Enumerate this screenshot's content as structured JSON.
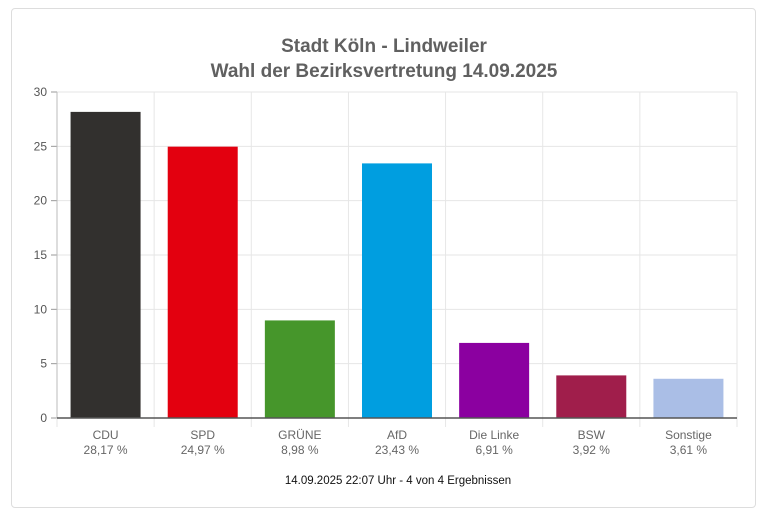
{
  "chart_data": {
    "type": "bar",
    "title": [
      "Stadt Köln - Lindweiler",
      "Wahl der Bezirksvertretung 14.09.2025"
    ],
    "categories": [
      "CDU",
      "SPD",
      "GRÜNE",
      "AfD",
      "Die Linke",
      "BSW",
      "Sonstige"
    ],
    "value_labels": [
      "28,17 %",
      "24,97 %",
      "8,98 %",
      "23,43 %",
      "6,91 %",
      "3,92 %",
      "3,61 %"
    ],
    "values": [
      28.17,
      24.97,
      8.98,
      23.43,
      6.91,
      3.92,
      3.61
    ],
    "colors": [
      "#32302e",
      "#e3000f",
      "#46962b",
      "#009ee0",
      "#8b00a0",
      "#a01e4b",
      "#aabee6"
    ],
    "ylim": [
      0,
      30
    ],
    "yticks": [
      0,
      5,
      10,
      15,
      20,
      25,
      30
    ],
    "grid": true,
    "legend": "none",
    "xlabel": "",
    "ylabel": ""
  },
  "footer": "14.09.2025 22:07 Uhr - 4 von 4 Ergebnissen"
}
